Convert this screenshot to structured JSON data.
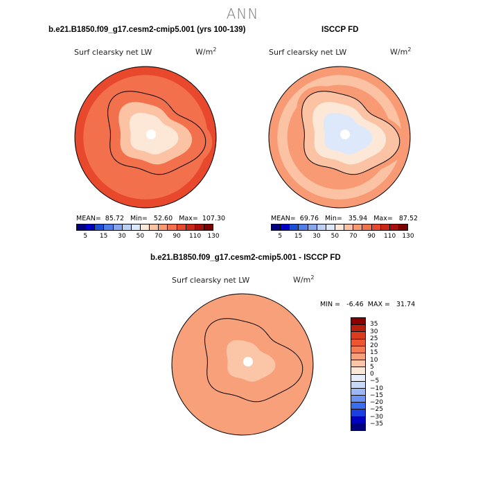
{
  "figure": {
    "title": "ANN",
    "colors": {
      "abs_scale": [
        "#00007f",
        "#0000c8",
        "#1b4fd6",
        "#4f7ee8",
        "#86a7f0",
        "#bcd0f7",
        "#dde9fb",
        "#fde8d8",
        "#fbc3a4",
        "#f89a74",
        "#f2704b",
        "#e8492c",
        "#cd2817",
        "#a80f0b",
        "#7d0000"
      ],
      "diff_scale": [
        "#00007f",
        "#0000c0",
        "#1b3fe0",
        "#3b6df0",
        "#6b93f3",
        "#9bb7f6",
        "#c7d8f9",
        "#e6eefb",
        "#fde8d8",
        "#fbc6a8",
        "#f8a07a",
        "#f47a54",
        "#ee5531",
        "#dc3b1c",
        "#b81f0c",
        "#8a0000"
      ]
    }
  },
  "chart_data": [
    {
      "type": "heatmap",
      "projection": "south-polar-stereographic",
      "title": "b.e21.B1850.f09_g17.cesm2-cmip5.001 (yrs 100-139)",
      "variable": "Surf clearsky net LW",
      "units": "W/m",
      "units_sup": "2",
      "stats": {
        "mean": "85.72",
        "min": "52.60",
        "max": "107.30"
      },
      "stats_text": "MEAN=  85.72   Min=   52.60   Max=  107.30",
      "colorbar": {
        "orientation": "horizontal",
        "ticks": [
          "5",
          "15",
          "30",
          "50",
          "70",
          "90",
          "110",
          "130"
        ]
      },
      "field": {
        "ocean": 92,
        "coast": 80,
        "plateau": 58
      }
    },
    {
      "type": "heatmap",
      "projection": "south-polar-stereographic",
      "title": "ISCCP FD",
      "variable": "Surf clearsky net LW",
      "units": "W/m",
      "units_sup": "2",
      "stats": {
        "mean": "69.76",
        "min": "35.94",
        "max": "87.52"
      },
      "stats_text": "MEAN=  69.76   Min=   35.94   Max=   87.52",
      "colorbar": {
        "orientation": "horizontal",
        "ticks": [
          "5",
          "15",
          "30",
          "50",
          "70",
          "90",
          "110",
          "130"
        ]
      },
      "field": {
        "ocean": 76,
        "coast": 64,
        "plateau": 45
      }
    },
    {
      "type": "heatmap",
      "projection": "south-polar-stereographic",
      "title": "b.e21.B1850.f09_g17.cesm2-cmip5.001 - ISCCP FD",
      "variable": "Surf clearsky net LW",
      "units": "W/m",
      "units_sup": "2",
      "stats": {
        "min": "-6.46",
        "max": "31.74"
      },
      "stats_text": "MIN =   -6.46  MAX =   31.74",
      "colorbar": {
        "orientation": "vertical",
        "ticks": [
          "35",
          "30",
          "25",
          "20",
          "15",
          "10",
          "5",
          "0",
          "−5",
          "−10",
          "−15",
          "−20",
          "−25",
          "−30",
          "−35"
        ]
      },
      "field": {
        "ocean": 14,
        "coast": 11,
        "plateau": 8
      }
    }
  ]
}
